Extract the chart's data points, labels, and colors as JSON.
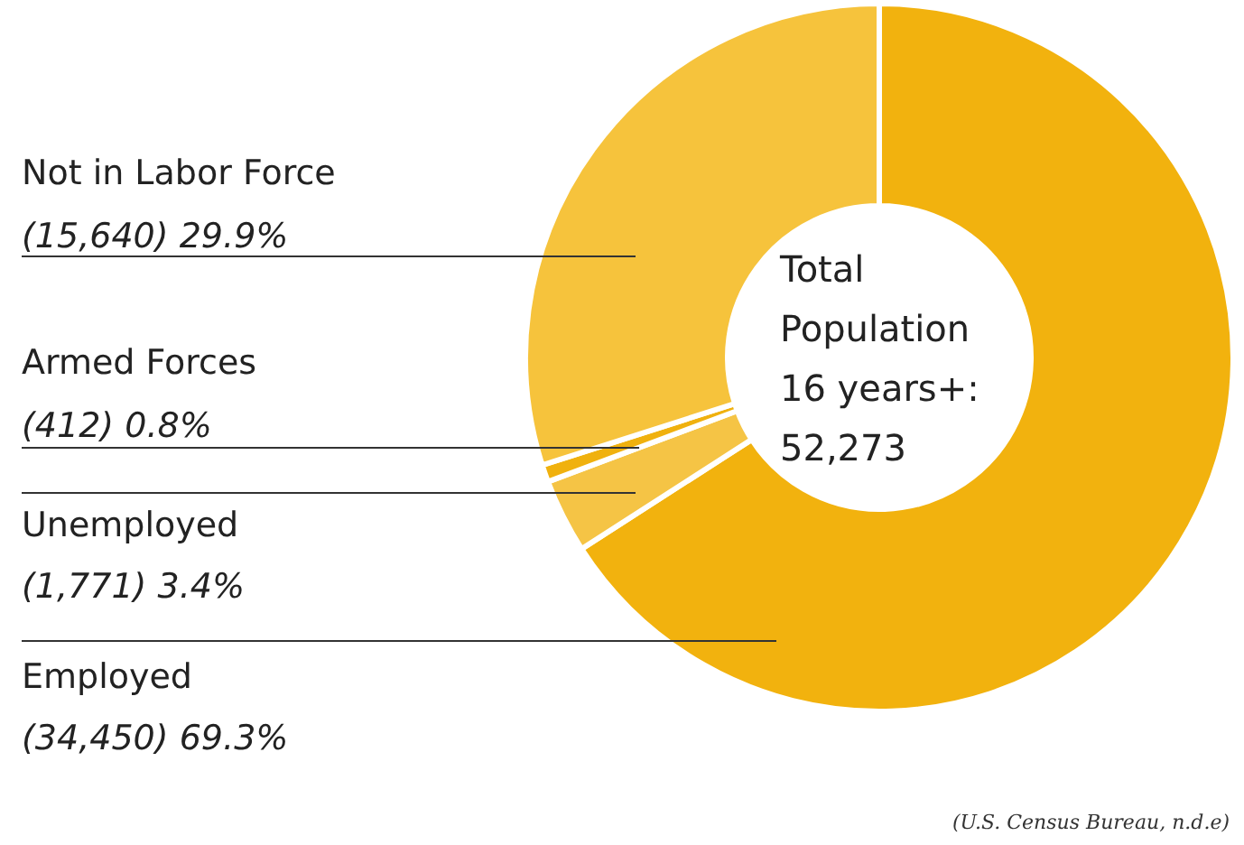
{
  "chart_data": {
    "type": "donut",
    "categories": [
      "Employed",
      "Unemployed",
      "Armed Forces",
      "Not in Labor Force"
    ],
    "values": [
      34450,
      1771,
      412,
      15640
    ],
    "value_labels": [
      "(34,450) 69.3%",
      "(1,771) 3.4%",
      "(412) 0.8%",
      "(15,640) 29.9%"
    ],
    "colors": [
      "#f2b20e",
      "#f5c445",
      "#f0b10e",
      "#f6c33c"
    ],
    "annotations": [
      "Total\nPopulation\n16 years+:\n52,273",
      "(U.S. Census Bureau, n.d.e)"
    ]
  }
}
